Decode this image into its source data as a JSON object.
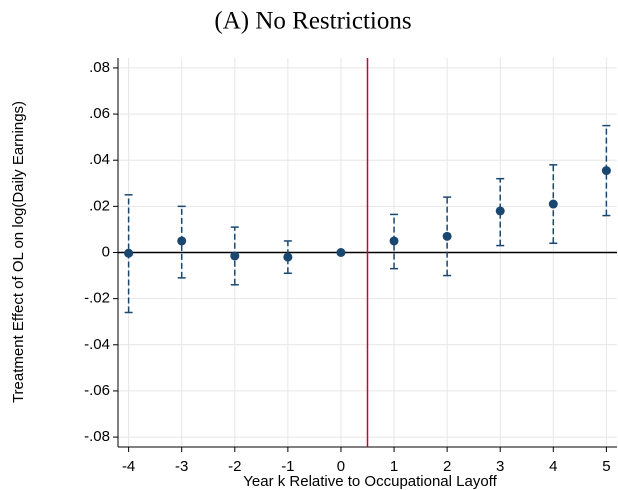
{
  "chart_data": {
    "type": "errorbar",
    "title": "(A) No Restrictions",
    "x_label": "Year k Relative to Occupational Layoff",
    "y_label": "Treatment Effect of OL on log(Daily Earnings)",
    "x": [
      -4,
      -3,
      -2,
      -1,
      0,
      1,
      2,
      3,
      4,
      5
    ],
    "values": [
      -0.0003,
      0.005,
      -0.0015,
      -0.002,
      0,
      0.005,
      0.007,
      0.018,
      0.021,
      0.0355
    ],
    "lower": [
      -0.026,
      -0.011,
      -0.014,
      -0.009,
      null,
      -0.007,
      -0.01,
      0.003,
      0.004,
      0.016
    ],
    "upper": [
      0.025,
      0.02,
      0.011,
      0.005,
      null,
      0.0165,
      0.024,
      0.032,
      0.038,
      0.055
    ],
    "color": "#1a476f",
    "xlim": [
      -4.2,
      5.2
    ],
    "xticks": [
      -4,
      -3,
      -2,
      -1,
      0,
      1,
      2,
      3,
      4,
      5
    ],
    "ylim": [
      -0.0843,
      0.0843
    ],
    "yticks": [
      {
        "value": 0.08,
        "label": ".08"
      },
      {
        "value": 0.06,
        "label": ".06"
      },
      {
        "value": 0.04,
        "label": ".04"
      },
      {
        "value": 0.02,
        "label": ".02"
      },
      0,
      {
        "value": -0.02,
        "label": "-.02"
      },
      {
        "value": -0.04,
        "label": "-.04"
      },
      {
        "value": -0.06,
        "label": "-.06"
      },
      {
        "value": -0.08,
        "label": "-.08"
      }
    ],
    "grid": true,
    "hline": 0,
    "hline_color": "#000000",
    "vline": 0.5,
    "vline_color": "#c10534"
  }
}
